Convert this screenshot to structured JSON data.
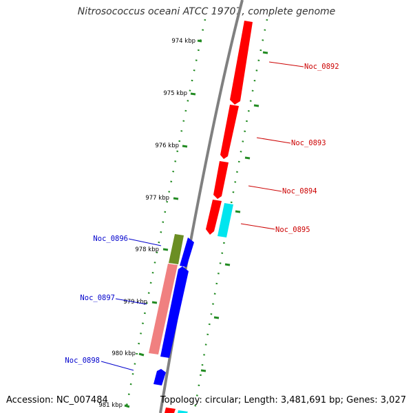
{
  "title": "Nitrosococcus oceani ATCC 19707, complete genome",
  "accession": "Accession: NC_007484",
  "summary": "Topology: circular; Length: 3,481,691 bp; Genes: 3,027",
  "kbp_labels": [
    "974 kbp",
    "975 kbp",
    "976 kbp",
    "977 kbp",
    "978 kbp",
    "979 kbp",
    "980 kbp",
    "981 kbp"
  ],
  "genes": [
    {
      "name": "Noc_0892",
      "color": "#cc0000"
    },
    {
      "name": "Noc_0893",
      "color": "#cc0000"
    },
    {
      "name": "Noc_0894",
      "color": "#cc0000"
    },
    {
      "name": "Noc_0895",
      "color": "#cc0000"
    },
    {
      "name": "Noc_0896",
      "color": "#0000cc"
    },
    {
      "name": "Noc_0897",
      "color": "#0000cc"
    },
    {
      "name": "Noc_0898",
      "color": "#0000cc"
    }
  ],
  "feature_colors": {
    "forward_cds": "#ff0000",
    "forward_rna": "#00e5ee",
    "reverse_cds": "#0000ff",
    "green_feature": "#6b8e23",
    "pink_feature": "#f08080",
    "backbone": "#808080",
    "tick": "#228b22"
  }
}
